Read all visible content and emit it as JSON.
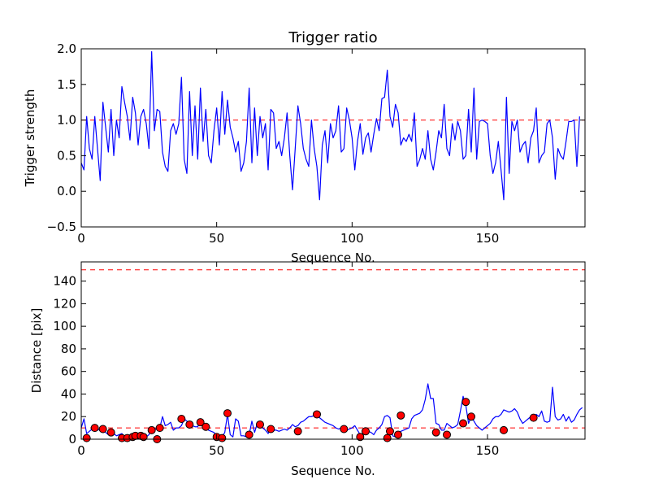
{
  "colors": {
    "series_line": "#0000ff",
    "reference_line": "#ff0000",
    "marker_fill": "#ff0000",
    "marker_edge": "#000000",
    "axes": "#000000",
    "background": "#ffffff"
  },
  "chart_data": [
    {
      "type": "line",
      "title": "Trigger ratio",
      "xlabel": "Sequence No.",
      "ylabel": "Trigger strength",
      "xlim": [
        0,
        186
      ],
      "ylim": [
        -0.5,
        2.0
      ],
      "xticks": [
        0,
        50,
        100,
        150
      ],
      "xtick_labels": [
        "0",
        "50",
        "100",
        "150"
      ],
      "yticks": [
        -0.5,
        0.0,
        0.5,
        1.0,
        1.5,
        2.0
      ],
      "ytick_labels": [
        "−0.5",
        "0.0",
        "0.5",
        "1.0",
        "1.5",
        "2.0"
      ],
      "grid": false,
      "reference_lines": [
        {
          "y": 1.0,
          "style": "dashed",
          "color": "red"
        }
      ],
      "series": [
        {
          "name": "trigger strength",
          "color": "blue",
          "x_start": 0,
          "values": [
            0.4,
            0.3,
            1.05,
            0.6,
            0.45,
            1.05,
            0.6,
            0.15,
            1.25,
            0.9,
            0.55,
            1.15,
            0.5,
            1.0,
            0.75,
            1.47,
            1.25,
            1.05,
            0.72,
            1.32,
            1.1,
            0.65,
            1.05,
            1.15,
            0.95,
            0.6,
            1.96,
            0.85,
            1.15,
            1.12,
            0.55,
            0.35,
            0.28,
            0.85,
            0.95,
            0.8,
            0.95,
            1.6,
            0.45,
            0.25,
            1.4,
            0.5,
            1.2,
            0.45,
            1.45,
            0.7,
            1.15,
            0.5,
            0.4,
            0.85,
            1.17,
            0.65,
            1.4,
            0.8,
            1.28,
            0.9,
            0.75,
            0.55,
            0.7,
            0.28,
            0.4,
            0.7,
            1.45,
            0.4,
            1.17,
            0.5,
            1.05,
            0.75,
            0.95,
            0.3,
            1.15,
            1.1,
            0.6,
            0.7,
            0.5,
            0.75,
            1.1,
            0.5,
            0.02,
            0.6,
            1.2,
            0.95,
            0.6,
            0.45,
            0.35,
            1.0,
            0.6,
            0.35,
            -0.12,
            0.65,
            0.85,
            0.4,
            0.95,
            0.75,
            0.85,
            1.2,
            0.55,
            0.6,
            1.17,
            1.0,
            0.75,
            0.3,
            0.7,
            0.95,
            0.52,
            0.75,
            0.82,
            0.55,
            0.8,
            1.02,
            0.85,
            1.3,
            1.32,
            1.7,
            1.05,
            0.9,
            1.22,
            1.1,
            0.65,
            0.75,
            0.7,
            0.8,
            0.7,
            1.1,
            0.35,
            0.45,
            0.6,
            0.45,
            0.85,
            0.45,
            0.3,
            0.55,
            0.85,
            0.75,
            1.22,
            0.6,
            0.5,
            0.95,
            0.72,
            0.98,
            0.85,
            0.45,
            0.5,
            1.15,
            0.55,
            1.45,
            0.45,
            0.98,
            1.0,
            0.98,
            0.95,
            0.5,
            0.25,
            0.4,
            0.7,
            0.3,
            -0.12,
            1.32,
            0.25,
            0.98,
            0.85,
            1.0,
            0.55,
            0.65,
            0.7,
            0.4,
            0.75,
            0.85,
            1.17,
            0.4,
            0.5,
            0.55,
            0.95,
            1.0,
            0.75,
            0.17,
            0.6,
            0.5,
            0.45,
            0.7,
            0.98,
            0.98,
            1.0,
            0.35,
            1.05
          ]
        }
      ]
    },
    {
      "type": "line",
      "title": "",
      "xlabel": "Sequence No.",
      "ylabel": "Distance [pix]",
      "xlim": [
        0,
        186
      ],
      "ylim": [
        0,
        157
      ],
      "xticks": [
        0,
        50,
        100,
        150
      ],
      "xtick_labels": [
        "0",
        "50",
        "100",
        "150"
      ],
      "yticks": [
        0,
        20,
        40,
        60,
        80,
        100,
        120,
        140
      ],
      "ytick_labels": [
        "0",
        "20",
        "40",
        "60",
        "80",
        "100",
        "120",
        "140"
      ],
      "grid": false,
      "reference_lines": [
        {
          "y": 150,
          "style": "dashed",
          "color": "red"
        },
        {
          "y": 10,
          "style": "dashed",
          "color": "red"
        }
      ],
      "series": [
        {
          "name": "distance",
          "color": "blue",
          "x_start": 0,
          "values": [
            10,
            18,
            5,
            7,
            9,
            10,
            8,
            9,
            10,
            6,
            4,
            5,
            5,
            3,
            4,
            5,
            2,
            1,
            1,
            2,
            3,
            5,
            5,
            3,
            2,
            4,
            9,
            8,
            10,
            10,
            20,
            12,
            13,
            15,
            8,
            10,
            10,
            12,
            18,
            16,
            14,
            12,
            11,
            11,
            16,
            14,
            11,
            8,
            7,
            6,
            3,
            2,
            2,
            6,
            22,
            4,
            2,
            18,
            16,
            3,
            3,
            2,
            4,
            16,
            6,
            14,
            13,
            10,
            8,
            5,
            10,
            8,
            8,
            7,
            8,
            9,
            8,
            10,
            13,
            11,
            12,
            15,
            16,
            18,
            20,
            20,
            21,
            22,
            19,
            17,
            15,
            14,
            13,
            12,
            10,
            9,
            10,
            9,
            8,
            9,
            10,
            12,
            8,
            4,
            5,
            6,
            7,
            6,
            4,
            8,
            10,
            13,
            20,
            21,
            19,
            3,
            2,
            5,
            7,
            8,
            9,
            10,
            18,
            21,
            22,
            23,
            26,
            35,
            49,
            36,
            36,
            14,
            13,
            8,
            8,
            14,
            12,
            10,
            11,
            13,
            25,
            38,
            30,
            14,
            20,
            16,
            12,
            10,
            8,
            10,
            12,
            14,
            18,
            20,
            20,
            22,
            26,
            25,
            24,
            25,
            27,
            24,
            18,
            14,
            16,
            18,
            20,
            17,
            22,
            20,
            25,
            16,
            15,
            16,
            46,
            20,
            17,
            18,
            22,
            16,
            20,
            15,
            17,
            22,
            26,
            28
          ]
        },
        {
          "name": "markers",
          "type": "scatter",
          "color": "red",
          "x": [
            2,
            5,
            8,
            11,
            15,
            17,
            19,
            20,
            22,
            23,
            26,
            28,
            29,
            37,
            40,
            44,
            46,
            50,
            52,
            54,
            62,
            66,
            70,
            80,
            87,
            97,
            103,
            105,
            113,
            114,
            117,
            118,
            131,
            135,
            141,
            142,
            144,
            156,
            167
          ],
          "y": [
            1,
            10,
            9,
            6,
            1,
            1,
            2,
            3,
            3,
            2,
            8,
            0,
            10,
            18,
            13,
            15,
            11,
            2,
            1,
            23,
            4,
            13,
            9,
            7,
            22,
            9,
            2,
            7,
            1,
            7,
            4,
            21,
            6,
            4,
            14,
            33,
            20,
            8,
            19
          ]
        }
      ]
    }
  ]
}
